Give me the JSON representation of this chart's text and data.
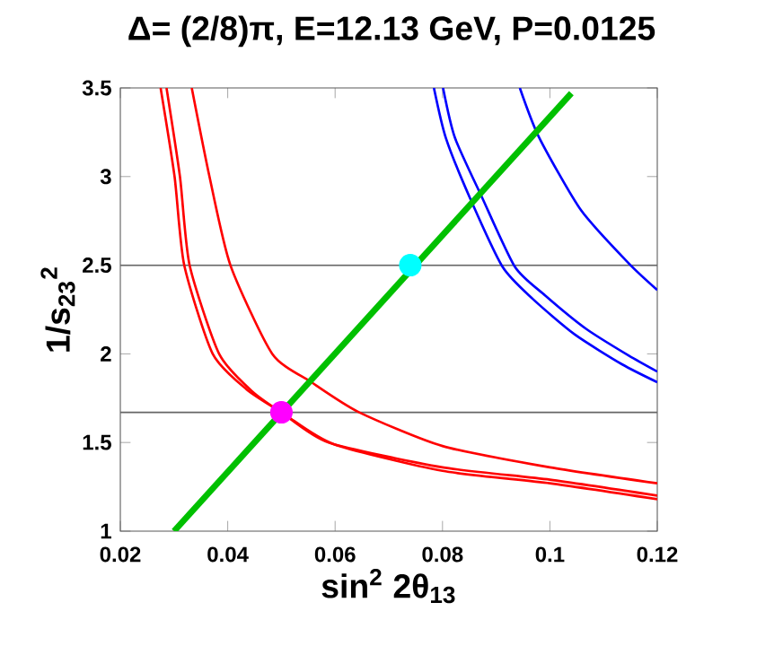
{
  "chart_data": {
    "type": "line",
    "title": "Δ= (2/8)π, E=12.13 GeV, P=0.0125",
    "xlabel": "sin$^{2}$ 2θ$_{13}$",
    "ylabel": "1/s$_{23}$$^{2}$",
    "xlim": [
      0.02,
      0.12
    ],
    "ylim": [
      1,
      3.5
    ],
    "xticks": [
      0.02,
      0.04,
      0.06,
      0.08,
      0.1,
      0.12
    ],
    "yticks": [
      1,
      1.5,
      2,
      2.5,
      3,
      3.5
    ],
    "ref_lines": [
      {
        "axis": "y",
        "value": 2.5,
        "color": "#666666"
      },
      {
        "axis": "y",
        "value": 1.67,
        "color": "#666666"
      }
    ],
    "series": [
      {
        "color": "#ff0000",
        "x": [
          0.0275,
          0.0301,
          0.0319,
          0.0372,
          0.0435,
          0.05,
          0.0588,
          0.08,
          0.1,
          0.12
        ],
        "values": [
          3.5,
          3.0,
          2.5,
          2.0,
          1.8,
          1.67,
          1.5,
          1.36,
          1.29,
          1.2
        ]
      },
      {
        "color": "#ff0000",
        "x": [
          0.0286,
          0.0311,
          0.0329,
          0.0384,
          0.0445,
          0.051,
          0.0598,
          0.08,
          0.1,
          0.12
        ],
        "values": [
          3.5,
          3.0,
          2.5,
          2.0,
          1.79,
          1.65,
          1.49,
          1.34,
          1.27,
          1.18
        ]
      },
      {
        "color": "#ff0000",
        "x": [
          0.0333,
          0.0366,
          0.0405,
          0.0483,
          0.0556,
          0.0645,
          0.08,
          0.1,
          0.12
        ],
        "values": [
          3.5,
          3.0,
          2.5,
          2.0,
          1.84,
          1.67,
          1.48,
          1.36,
          1.27
        ]
      },
      {
        "color": "#0000ff",
        "x": [
          0.0784,
          0.0806,
          0.0851,
          0.0912,
          0.0968,
          0.1046,
          0.1135,
          0.12
        ],
        "values": [
          3.5,
          3.22,
          2.88,
          2.49,
          2.31,
          2.11,
          1.94,
          1.84
        ]
      },
      {
        "color": "#0000ff",
        "x": [
          0.0801,
          0.0823,
          0.0874,
          0.0935,
          0.0991,
          0.1068,
          0.1147,
          0.12
        ],
        "values": [
          3.5,
          3.22,
          2.88,
          2.49,
          2.33,
          2.14,
          1.99,
          1.9
        ]
      },
      {
        "color": "#0000ff",
        "x": [
          0.0944,
          0.098,
          0.1058,
          0.1147,
          0.12
        ],
        "values": [
          3.5,
          3.22,
          2.81,
          2.51,
          2.36
        ]
      },
      {
        "color": "#00c000",
        "x": [
          0.03,
          0.104
        ],
        "values": [
          1,
          3.47
        ]
      },
      {
        "type": "scatter",
        "marker": "circle",
        "color": "#ff00ff",
        "x": [
          0.05
        ],
        "values": [
          1.67
        ]
      },
      {
        "type": "scatter",
        "marker": "circle",
        "color": "#00ffff",
        "x": [
          0.074
        ],
        "values": [
          2.5
        ]
      }
    ]
  }
}
